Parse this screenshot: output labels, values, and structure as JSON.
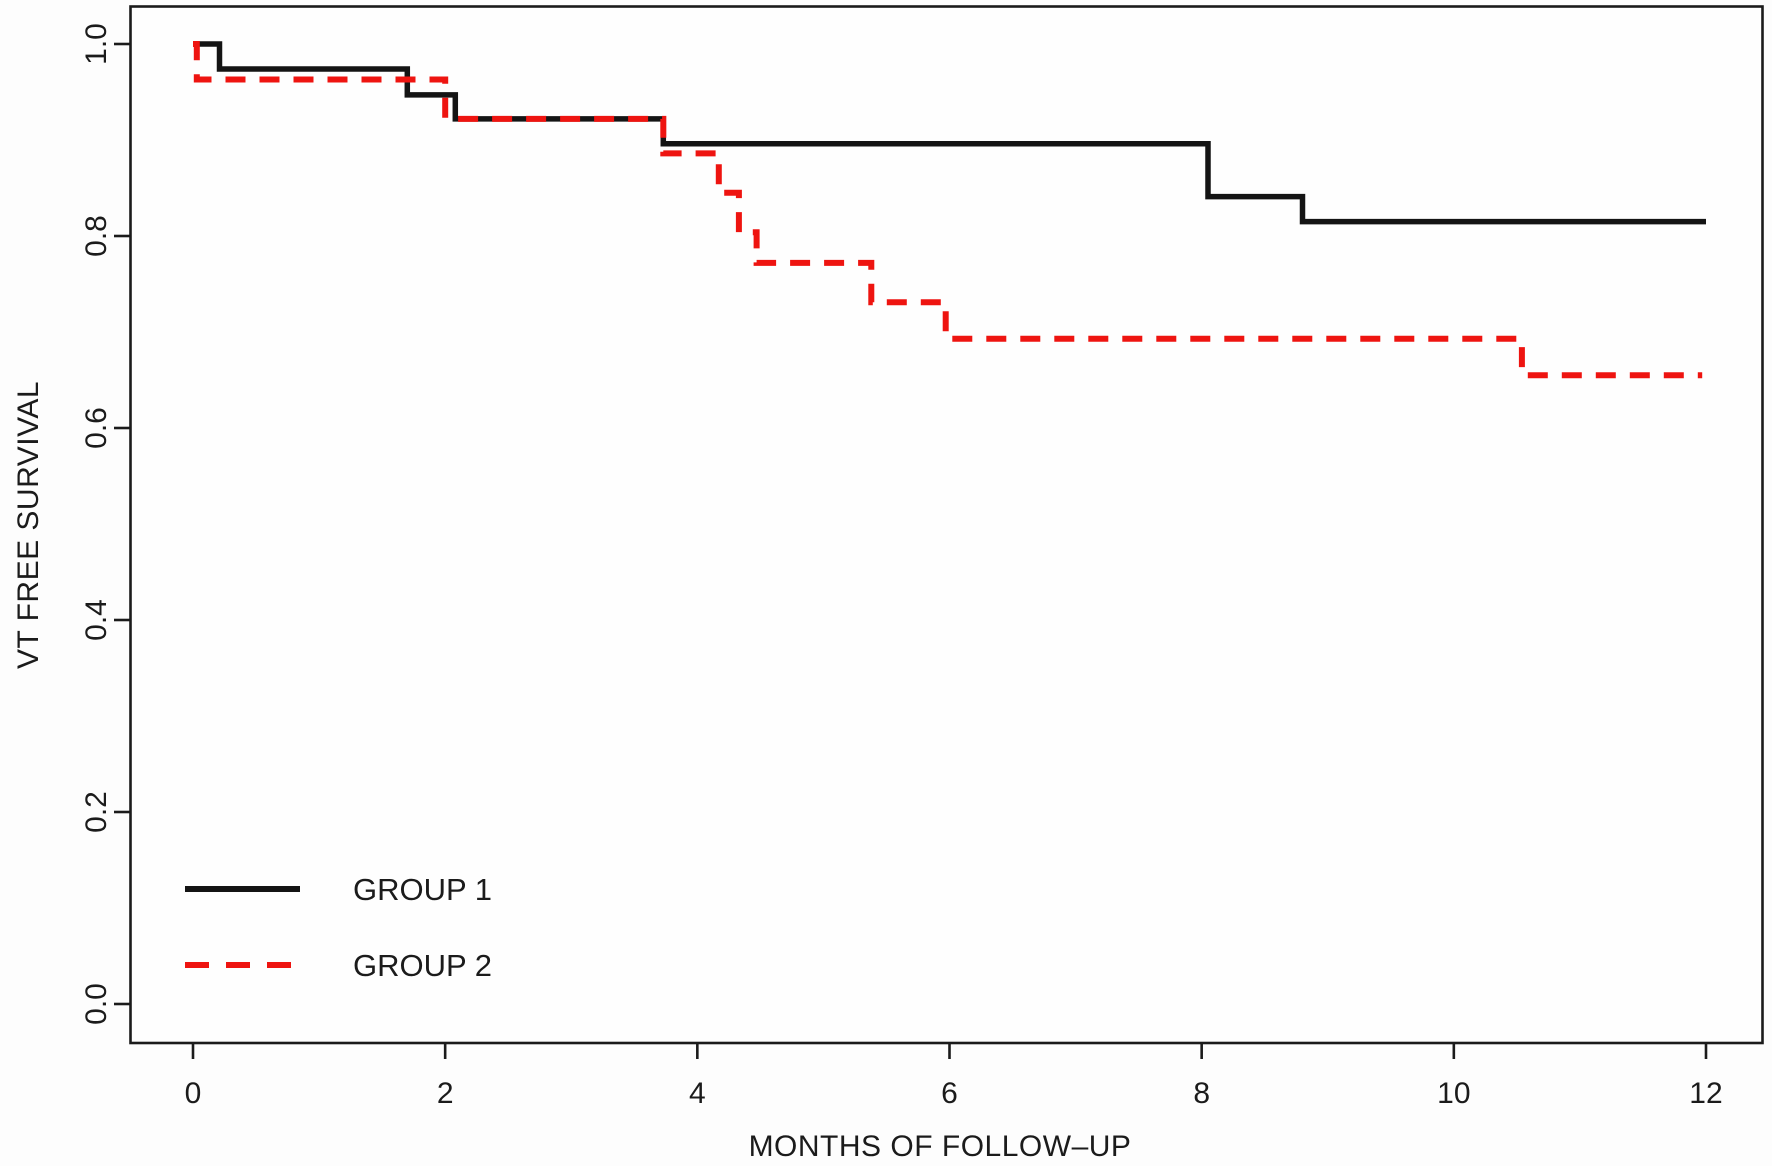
{
  "figure": {
    "kind": "kaplan-meier-survival-plot",
    "background_color": "#fdfdfd",
    "plot_background_color": "#fefefe",
    "frame_color": "#1b1b1b"
  },
  "chart_data": {
    "type": "line",
    "subtype": "step-survival-km",
    "title": "",
    "xlabel": "MONTHS OF FOLLOW–UP",
    "ylabel": "VT FREE SURVIVAL",
    "xlim": [
      0,
      12
    ],
    "ylim": [
      0.0,
      1.0
    ],
    "grid": false,
    "xticks": {
      "values": [
        0,
        2,
        4,
        6,
        8,
        10,
        12
      ],
      "labels": [
        "0",
        "2",
        "4",
        "6",
        "8",
        "10",
        "12"
      ]
    },
    "yticks": {
      "values": [
        0.0,
        0.2,
        0.4,
        0.6,
        0.8,
        1.0
      ],
      "labels": [
        "0.0",
        "0.2",
        "0.4",
        "0.6",
        "0.8",
        "1.0"
      ]
    },
    "legend": {
      "position": "bottom-left"
    },
    "series": [
      {
        "name": "GROUP 1",
        "color": "#141414",
        "line_style": "solid",
        "step_points": [
          [
            0,
            1.0
          ],
          [
            0.21,
            0.974
          ],
          [
            1.7,
            0.947
          ],
          [
            2.08,
            0.922
          ],
          [
            3.73,
            0.896
          ],
          [
            8.05,
            0.841
          ],
          [
            8.8,
            0.815
          ]
        ],
        "end_x": 12.0
      },
      {
        "name": "GROUP 2",
        "color": "#ee1410",
        "line_style": "dashed",
        "step_points": [
          [
            0,
            1.0
          ],
          [
            0.03,
            0.963
          ],
          [
            2.0,
            0.922
          ],
          [
            3.73,
            0.886
          ],
          [
            4.17,
            0.845
          ],
          [
            4.33,
            0.804
          ],
          [
            4.47,
            0.772
          ],
          [
            5.38,
            0.731
          ],
          [
            5.97,
            0.693
          ],
          [
            10.54,
            0.655
          ]
        ],
        "end_x": 11.97
      }
    ]
  }
}
